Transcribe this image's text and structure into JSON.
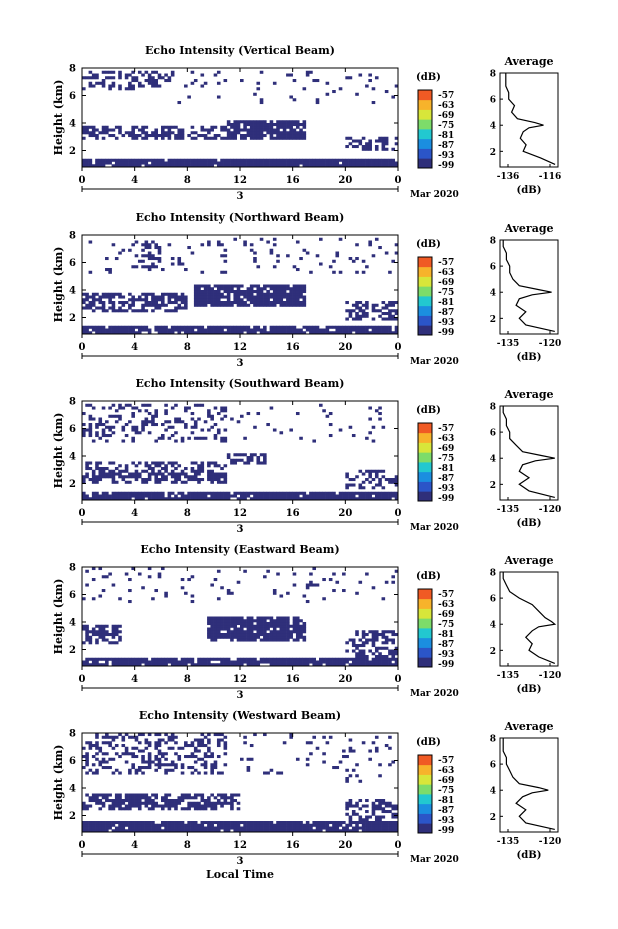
{
  "figure": {
    "bottom_xlabel": "Local Time"
  },
  "colorbar": {
    "unit_label": "(dB)",
    "ticks": [
      "-57",
      "-63",
      "-69",
      "-75",
      "-81",
      "-87",
      "-93",
      "-99"
    ],
    "colors": [
      "#2f2f7a",
      "#2b55c8",
      "#1b8ee0",
      "#22c8d0",
      "#7ddc6a",
      "#d8e63a",
      "#f7b32b",
      "#f05a24"
    ]
  },
  "chart_data": [
    {
      "type": "heatmap",
      "title": "Echo Intensity (Vertical Beam)",
      "ylabel": "Height (km)",
      "xlabel": "Mar 2020",
      "x_ticks": [
        "0",
        "4",
        "8",
        "12",
        "16",
        "20",
        "0"
      ],
      "x_date_label": "3",
      "y_ticks": [
        "2",
        "4",
        "6",
        "8"
      ],
      "xlim": [
        0,
        24
      ],
      "ylim": [
        0.8,
        8.0
      ],
      "profile": {
        "title": "Average",
        "xlabel": "(dB)",
        "x_ticks": [
          "-136",
          "-116"
        ],
        "xlim": [
          -136,
          -116
        ],
        "y_ticks": [
          "2",
          "4",
          "6",
          "8"
        ],
        "ylim": [
          0.8,
          8.0
        ],
        "heights": [
          1.0,
          1.5,
          2.0,
          2.5,
          3.0,
          3.5,
          3.8,
          4.0,
          4.2,
          4.5,
          5.0,
          5.5,
          6.0,
          6.5,
          7.0,
          7.5,
          8.0
        ],
        "values": [
          -117,
          -122,
          -128,
          -127,
          -129,
          -128,
          -126,
          -121,
          -124,
          -130,
          -132,
          -131,
          -133,
          -133,
          -134,
          -134,
          -134
        ]
      }
    },
    {
      "type": "heatmap",
      "title": "Echo Intensity (Northward Beam)",
      "ylabel": "Height (km)",
      "xlabel": "Mar 2020",
      "x_ticks": [
        "0",
        "4",
        "8",
        "12",
        "16",
        "20",
        "0"
      ],
      "x_date_label": "3",
      "y_ticks": [
        "2",
        "4",
        "6",
        "8"
      ],
      "xlim": [
        0,
        24
      ],
      "ylim": [
        0.8,
        8.0
      ],
      "profile": {
        "title": "Average",
        "xlabel": "(dB)",
        "x_ticks": [
          "-135",
          "-120"
        ],
        "xlim": [
          -136,
          -118
        ],
        "y_ticks": [
          "2",
          "4",
          "6",
          "8"
        ],
        "ylim": [
          0.8,
          8.0
        ],
        "heights": [
          1.0,
          1.5,
          2.0,
          2.5,
          3.0,
          3.5,
          3.8,
          4.0,
          4.2,
          4.5,
          5.0,
          5.5,
          6.0,
          6.5,
          7.0,
          7.5,
          8.0
        ],
        "values": [
          -119,
          -128,
          -130,
          -128,
          -131,
          -130,
          -126,
          -120,
          -124,
          -130,
          -132,
          -133,
          -133,
          -134,
          -134,
          -135,
          -135
        ]
      }
    },
    {
      "type": "heatmap",
      "title": "Echo Intensity (Southward Beam)",
      "ylabel": "Height (km)",
      "xlabel": "Mar 2020",
      "x_ticks": [
        "0",
        "4",
        "8",
        "12",
        "16",
        "20",
        "0"
      ],
      "x_date_label": "3",
      "y_ticks": [
        "2",
        "4",
        "6",
        "8"
      ],
      "xlim": [
        0,
        24
      ],
      "ylim": [
        0.8,
        8.0
      ],
      "profile": {
        "title": "Average",
        "xlabel": "(dB)",
        "x_ticks": [
          "-135",
          "-120"
        ],
        "xlim": [
          -136,
          -118
        ],
        "y_ticks": [
          "2",
          "4",
          "6",
          "8"
        ],
        "ylim": [
          0.8,
          8.0
        ],
        "heights": [
          1.0,
          1.5,
          2.0,
          2.5,
          3.0,
          3.5,
          3.8,
          4.0,
          4.2,
          4.5,
          5.0,
          5.5,
          6.0,
          6.5,
          7.0,
          7.5,
          8.0
        ],
        "values": [
          -119,
          -127,
          -130,
          -127,
          -130,
          -129,
          -125,
          -119,
          -123,
          -129,
          -131,
          -133,
          -133,
          -134,
          -134,
          -135,
          -135
        ]
      }
    },
    {
      "type": "heatmap",
      "title": "Echo Intensity (Eastward Beam)",
      "ylabel": "Height (km)",
      "xlabel": "Mar 2020",
      "x_ticks": [
        "0",
        "4",
        "8",
        "12",
        "16",
        "20",
        "0"
      ],
      "x_date_label": "3",
      "y_ticks": [
        "2",
        "4",
        "6",
        "8"
      ],
      "xlim": [
        0,
        24
      ],
      "ylim": [
        0.8,
        8.0
      ],
      "profile": {
        "title": "Average",
        "xlabel": "(dB)",
        "x_ticks": [
          "-135",
          "-120"
        ],
        "xlim": [
          -136,
          -118
        ],
        "y_ticks": [
          "2",
          "4",
          "6",
          "8"
        ],
        "ylim": [
          0.8,
          8.0
        ],
        "heights": [
          1.0,
          1.5,
          2.0,
          2.5,
          3.0,
          3.5,
          3.8,
          4.0,
          4.2,
          4.5,
          5.0,
          5.5,
          6.0,
          6.5,
          7.0,
          7.5,
          8.0
        ],
        "values": [
          -119,
          -124,
          -127,
          -126,
          -128,
          -126,
          -124,
          -119,
          -120,
          -122,
          -124,
          -126,
          -130,
          -133,
          -134,
          -135,
          -135
        ]
      }
    },
    {
      "type": "heatmap",
      "title": "Echo Intensity (Westward Beam)",
      "ylabel": "Height (km)",
      "xlabel": "Mar 2020",
      "x_ticks": [
        "0",
        "4",
        "8",
        "12",
        "16",
        "20",
        "0"
      ],
      "x_date_label": "3",
      "y_ticks": [
        "2",
        "4",
        "6",
        "8"
      ],
      "xlim": [
        0,
        24
      ],
      "ylim": [
        0.8,
        8.0
      ],
      "profile": {
        "title": "Average",
        "xlabel": "(dB)",
        "x_ticks": [
          "-135",
          "-120"
        ],
        "xlim": [
          -136,
          -118
        ],
        "y_ticks": [
          "2",
          "4",
          "6",
          "8"
        ],
        "ylim": [
          0.8,
          8.0
        ],
        "heights": [
          1.0,
          1.5,
          2.0,
          2.5,
          3.0,
          3.5,
          3.8,
          4.0,
          4.2,
          4.5,
          5.0,
          5.5,
          6.0,
          6.5,
          7.0,
          7.5,
          8.0
        ],
        "values": [
          -119,
          -128,
          -130,
          -128,
          -131,
          -129,
          -126,
          -121,
          -124,
          -130,
          -132,
          -133,
          -134,
          -134,
          -135,
          -135,
          -135
        ]
      }
    }
  ]
}
